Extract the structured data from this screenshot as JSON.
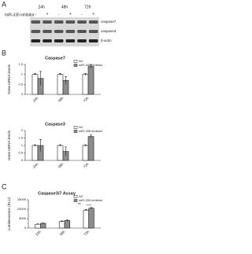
{
  "panel_labels": [
    "A",
    "B",
    "C"
  ],
  "blot": {
    "times": [
      "24h",
      "48h",
      "72h"
    ],
    "treatment_label": "miR-335 inhibitor",
    "signs": [
      "-",
      "+",
      "-",
      "+",
      "-",
      "+"
    ],
    "proteins": [
      "caspase7",
      "caspase3",
      "β-actin"
    ]
  },
  "chart_data": [
    {
      "type": "bar",
      "title": "Caspase7",
      "y_label": "Gene mRNA levels",
      "categories": [
        "24h",
        "48h",
        "72h"
      ],
      "series": [
        {
          "name": "NC",
          "color": "#ffffff",
          "values": [
            1,
            1,
            1
          ],
          "errors": [
            0.05,
            0.05,
            0.05
          ]
        },
        {
          "name": "miR-335 inhibitor",
          "color": "#8c8c8c",
          "values": [
            0.8,
            0.7,
            1.4
          ],
          "errors": [
            0.35,
            0.2,
            0.1
          ]
        }
      ],
      "ylim": [
        0,
        1.5
      ],
      "yticks": [
        0,
        0.5,
        1,
        1.5
      ],
      "legend": "top-right"
    },
    {
      "type": "bar",
      "title": "Caspase3",
      "y_label": "Gene mRNA levels",
      "categories": [
        "24h",
        "48h",
        "72h"
      ],
      "series": [
        {
          "name": "NC",
          "color": "#ffffff",
          "values": [
            1,
            1,
            1
          ],
          "errors": [
            0.05,
            0.05,
            0.05
          ]
        },
        {
          "name": "miR-335 inhibitor",
          "color": "#8c8c8c",
          "values": [
            1,
            0.6,
            1.6
          ],
          "errors": [
            0.4,
            0.3,
            0.1
          ]
        }
      ],
      "ylim": [
        0,
        2
      ],
      "yticks": [
        0,
        0.5,
        1,
        1.5,
        2
      ],
      "legend": "top-right"
    },
    {
      "type": "bar",
      "title": "Caspase3/7 Assay",
      "y_label": "Luminescence (RLU)",
      "categories": [
        "24h",
        "48h",
        "72h"
      ],
      "series": [
        {
          "name": "NC",
          "color": "#ffffff",
          "values": [
            2000,
            3500,
            9500
          ],
          "errors": [
            200,
            300,
            400
          ]
        },
        {
          "name": "miR-335 inhibitor",
          "color": "#8c8c8c",
          "values": [
            2500,
            4000,
            10500
          ],
          "errors": [
            200,
            300,
            400
          ]
        }
      ],
      "ylim": [
        0,
        15000
      ],
      "yticks": [
        0,
        5000,
        10000,
        15000
      ],
      "legend": "top-right",
      "annotation": "**"
    }
  ]
}
